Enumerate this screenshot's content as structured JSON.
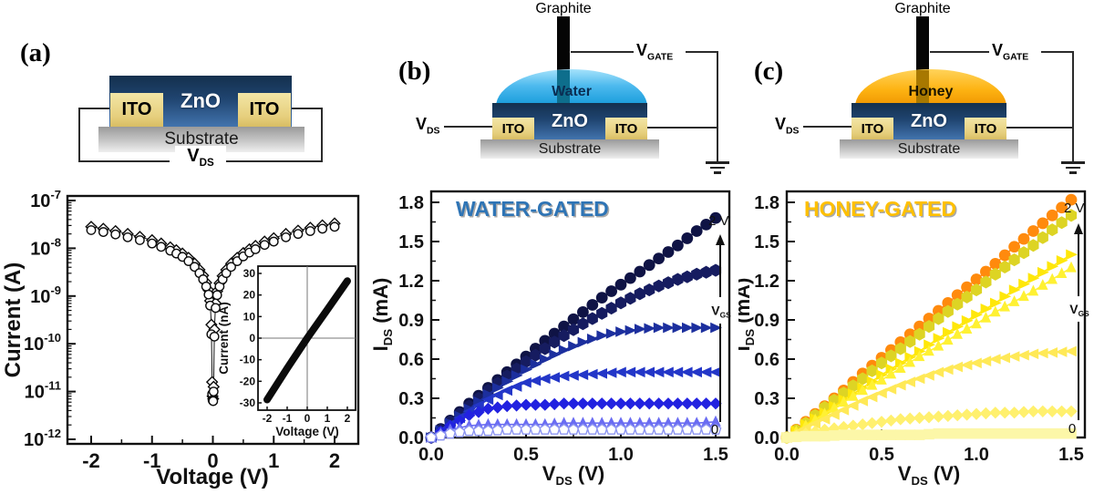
{
  "figure": {
    "panels": {
      "a": {
        "label": "(a)",
        "schematic": {
          "zno": "ZnO",
          "ito_left": "ITO",
          "ito_right": "ITO",
          "substrate": "Substrate",
          "vds_main": "V",
          "vds_sub": "DS"
        }
      },
      "b": {
        "label": "(b)",
        "schematic": {
          "graphite": "Graphite",
          "liquid": "Water",
          "zno": "ZnO",
          "ito_left": "ITO",
          "ito_right": "ITO",
          "substrate": "Substrate",
          "vds_main": "V",
          "vds_sub": "DS",
          "vgate_main": "V",
          "vgate_sub": "GATE"
        }
      },
      "c": {
        "label": "(c)",
        "schematic": {
          "graphite": "Graphite",
          "liquid": "Honey",
          "zno": "ZnO",
          "ito_left": "ITO",
          "ito_right": "ITO",
          "substrate": "Substrate",
          "vds_main": "V",
          "vds_sub": "DS",
          "vgate_main": "V",
          "vgate_sub": "GATE"
        }
      }
    }
  },
  "chart_data": [
    {
      "id": "iv-log",
      "type": "scatter",
      "title": "",
      "xlabel": "Voltage (V)",
      "ylabel": "Current (A)",
      "x_ticks": [
        -2,
        -1,
        0,
        1,
        2
      ],
      "xlim": [
        -2.4,
        2.4
      ],
      "y_scale": "log",
      "y_tick_exponents": [
        -7,
        -8,
        -9,
        -10,
        -11,
        -12
      ],
      "grid": false,
      "series": [
        {
          "name": "sweep-diamonds",
          "marker": "diamond",
          "color": "#0b0b0b",
          "fill": "#ffffff",
          "x": [
            -2.0,
            -1.8,
            -1.6,
            -1.4,
            -1.2,
            -1.0,
            -0.85,
            -0.7,
            -0.6,
            -0.5,
            -0.4,
            -0.3,
            -0.22,
            -0.16,
            -0.11,
            -0.07,
            -0.045,
            -0.025,
            -0.012,
            -0.005,
            0.005,
            0.012,
            0.025,
            0.045,
            0.07,
            0.11,
            0.16,
            0.22,
            0.3,
            0.4,
            0.5,
            0.6,
            0.7,
            0.85,
            1.0,
            1.2,
            1.4,
            1.6,
            1.8,
            2.0
          ],
          "logy": [
            -7.55,
            -7.59,
            -7.64,
            -7.7,
            -7.76,
            -7.83,
            -7.9,
            -7.98,
            -8.04,
            -8.11,
            -8.2,
            -8.32,
            -8.45,
            -8.57,
            -8.72,
            -8.88,
            -9.1,
            -9.6,
            -10.8,
            -11.1,
            -11.15,
            -10.9,
            -9.7,
            -9.15,
            -8.9,
            -8.73,
            -8.58,
            -8.45,
            -8.32,
            -8.2,
            -8.1,
            -8.02,
            -7.95,
            -7.86,
            -7.79,
            -7.7,
            -7.63,
            -7.57,
            -7.52,
            -7.48
          ]
        },
        {
          "name": "sweep-circles",
          "marker": "circle",
          "color": "#0b0b0b",
          "fill": "#ffffff",
          "x": [
            -2.0,
            -1.8,
            -1.6,
            -1.4,
            -1.2,
            -1.0,
            -0.85,
            -0.7,
            -0.6,
            -0.5,
            -0.4,
            -0.3,
            -0.22,
            -0.16,
            -0.11,
            -0.07,
            -0.045,
            -0.025,
            -0.012,
            -0.005,
            0.005,
            0.012,
            0.025,
            0.045,
            0.07,
            0.11,
            0.16,
            0.22,
            0.3,
            0.4,
            0.5,
            0.6,
            0.7,
            0.85,
            1.0,
            1.2,
            1.4,
            1.6,
            1.8,
            2.0
          ],
          "logy": [
            -7.62,
            -7.66,
            -7.71,
            -7.77,
            -7.83,
            -7.9,
            -7.97,
            -8.05,
            -8.11,
            -8.18,
            -8.27,
            -8.39,
            -8.52,
            -8.65,
            -8.8,
            -8.97,
            -9.2,
            -9.8,
            -11.05,
            -11.18,
            -11.2,
            -11.0,
            -9.85,
            -9.25,
            -8.98,
            -8.8,
            -8.65,
            -8.52,
            -8.39,
            -8.27,
            -8.17,
            -8.09,
            -8.02,
            -7.93,
            -7.86,
            -7.77,
            -7.7,
            -7.64,
            -7.59,
            -7.55
          ]
        }
      ]
    },
    {
      "id": "iv-linear-inset",
      "type": "line",
      "xlabel": "Voltage (V)",
      "ylabel": "Current (nA)",
      "x_ticks": [
        -2,
        -1,
        0,
        1,
        2
      ],
      "y_ticks": [
        -30,
        -20,
        -10,
        0,
        10,
        20,
        30
      ],
      "xlim": [
        -2.45,
        2.45
      ],
      "ylim": [
        -34,
        34
      ],
      "series": [
        {
          "name": "linear-iv",
          "color": "#0b0b0b",
          "width": 8,
          "x": [
            -2,
            -1,
            0,
            1,
            2
          ],
          "y": [
            -28.5,
            -14,
            0,
            13.2,
            26.5
          ]
        }
      ]
    },
    {
      "id": "water-output",
      "type": "scatter",
      "title": "WATER-GATED",
      "title_color": "#2E74B5",
      "xlabel": {
        "main": "V",
        "sub": "DS",
        "rest": " (V)"
      },
      "ylabel": {
        "main": "I",
        "sub": "DS",
        "rest": " (mA)"
      },
      "x_ticks": [
        0.0,
        0.5,
        1.0,
        1.5
      ],
      "y_ticks": [
        0.0,
        0.3,
        0.6,
        0.9,
        1.2,
        1.5,
        1.8
      ],
      "xlim": [
        0,
        1.57
      ],
      "ylim": [
        0,
        1.88
      ],
      "annotations": {
        "top": "2 V",
        "bottom": "0",
        "arrow_label": {
          "main": "V",
          "sub": "GS"
        }
      },
      "x": [
        0,
        0.1,
        0.2,
        0.3,
        0.4,
        0.5,
        0.6,
        0.7,
        0.8,
        0.9,
        1.0,
        1.1,
        1.2,
        1.3,
        1.4,
        1.5
      ],
      "series": [
        {
          "name": "vgs-2V-circles",
          "marker": "circle",
          "color": "#0f1345",
          "y": [
            0,
            0.13,
            0.26,
            0.38,
            0.5,
            0.62,
            0.74,
            0.85,
            0.96,
            1.07,
            1.17,
            1.27,
            1.37,
            1.47,
            1.58,
            1.68
          ]
        },
        {
          "name": "hexagons",
          "marker": "hexagon",
          "color": "#161c60",
          "y": [
            0,
            0.12,
            0.24,
            0.36,
            0.47,
            0.58,
            0.68,
            0.78,
            0.87,
            0.95,
            1.03,
            1.1,
            1.16,
            1.21,
            1.25,
            1.28
          ]
        },
        {
          "name": "right-triangles",
          "marker": "tri-right",
          "color": "#1c2f9e",
          "y": [
            0,
            0.11,
            0.22,
            0.33,
            0.43,
            0.52,
            0.6,
            0.67,
            0.73,
            0.78,
            0.81,
            0.83,
            0.84,
            0.84,
            0.84,
            0.84
          ]
        },
        {
          "name": "left-triangles",
          "marker": "tri-left",
          "color": "#2336c8",
          "y": [
            0,
            0.1,
            0.2,
            0.29,
            0.36,
            0.42,
            0.45,
            0.47,
            0.48,
            0.49,
            0.5,
            0.5,
            0.5,
            0.5,
            0.5,
            0.5
          ]
        },
        {
          "name": "diamonds",
          "marker": "diamond",
          "color": "#2222e0",
          "y": [
            0,
            0.09,
            0.17,
            0.22,
            0.24,
            0.25,
            0.25,
            0.26,
            0.26,
            0.26,
            0.26,
            0.26,
            0.26,
            0.26,
            0.26,
            0.26
          ]
        },
        {
          "name": "up-triangles",
          "marker": "tri-up",
          "color": "#6a6cf2",
          "y": [
            0,
            0.06,
            0.09,
            0.1,
            0.1,
            0.1,
            0.1,
            0.11,
            0.11,
            0.11,
            0.11,
            0.11,
            0.11,
            0.11,
            0.11,
            0.12
          ]
        },
        {
          "name": "vgs-0-pentagons",
          "marker": "pentagon",
          "color": "#8d95f2",
          "fill": "#ffffff",
          "y": [
            0,
            0.03,
            0.05,
            0.05,
            0.06,
            0.06,
            0.06,
            0.06,
            0.06,
            0.06,
            0.06,
            0.06,
            0.06,
            0.06,
            0.06,
            0.06
          ]
        }
      ]
    },
    {
      "id": "honey-output",
      "type": "scatter",
      "title": "HONEY-GATED",
      "title_color": "#FFC000",
      "xlabel": {
        "main": "V",
        "sub": "DS",
        "rest": " (V)"
      },
      "ylabel": {
        "main": "I",
        "sub": "DS",
        "rest": " (mA)"
      },
      "x_ticks": [
        0.0,
        0.5,
        1.0,
        1.5
      ],
      "y_ticks": [
        0.0,
        0.3,
        0.6,
        0.9,
        1.2,
        1.5,
        1.8
      ],
      "xlim": [
        0,
        1.57
      ],
      "ylim": [
        0,
        1.88
      ],
      "annotations": {
        "top": "2 V",
        "bottom": "0",
        "arrow_label": {
          "main": "V",
          "sub": "GS"
        }
      },
      "x": [
        0,
        0.1,
        0.2,
        0.3,
        0.4,
        0.5,
        0.6,
        0.7,
        0.8,
        0.9,
        1.0,
        1.1,
        1.2,
        1.3,
        1.4,
        1.5
      ],
      "series": [
        {
          "name": "vgs-2V-circles",
          "marker": "circle",
          "color": "#ff8a0d",
          "y": [
            0,
            0.12,
            0.24,
            0.36,
            0.49,
            0.61,
            0.73,
            0.85,
            0.97,
            1.09,
            1.21,
            1.33,
            1.46,
            1.58,
            1.7,
            1.82
          ]
        },
        {
          "name": "hexagons",
          "marker": "hexagon",
          "color": "#ddd424",
          "y": [
            0,
            0.11,
            0.23,
            0.34,
            0.45,
            0.57,
            0.68,
            0.79,
            0.91,
            1.02,
            1.13,
            1.25,
            1.36,
            1.47,
            1.59,
            1.7
          ]
        },
        {
          "name": "right-triangles",
          "marker": "tri-right",
          "color": "#ffe70a",
          "y": [
            0,
            0.1,
            0.19,
            0.29,
            0.38,
            0.48,
            0.57,
            0.66,
            0.76,
            0.85,
            0.94,
            1.03,
            1.13,
            1.22,
            1.31,
            1.4
          ]
        },
        {
          "name": "up-triangles",
          "marker": "tri-up",
          "color": "#fff133",
          "y": [
            0,
            0.09,
            0.18,
            0.27,
            0.36,
            0.44,
            0.53,
            0.62,
            0.7,
            0.79,
            0.87,
            0.96,
            1.04,
            1.12,
            1.21,
            1.3
          ]
        },
        {
          "name": "left-triangles",
          "marker": "tri-left",
          "color": "#ffe957",
          "y": [
            0,
            0.07,
            0.14,
            0.21,
            0.28,
            0.34,
            0.4,
            0.45,
            0.5,
            0.54,
            0.57,
            0.6,
            0.62,
            0.64,
            0.65,
            0.66
          ]
        },
        {
          "name": "diamonds",
          "marker": "diamond",
          "color": "#fff06e",
          "y": [
            0,
            0.03,
            0.06,
            0.08,
            0.1,
            0.12,
            0.14,
            0.15,
            0.16,
            0.17,
            0.18,
            0.19,
            0.19,
            0.2,
            0.2,
            0.2
          ]
        },
        {
          "name": "vgs-0-squares",
          "marker": "square",
          "color": "#fcf7a8",
          "y": [
            0,
            0.01,
            0.01,
            0.02,
            0.02,
            0.02,
            0.02,
            0.02,
            0.03,
            0.03,
            0.03,
            0.03,
            0.03,
            0.03,
            0.03,
            0.03
          ]
        }
      ]
    }
  ]
}
